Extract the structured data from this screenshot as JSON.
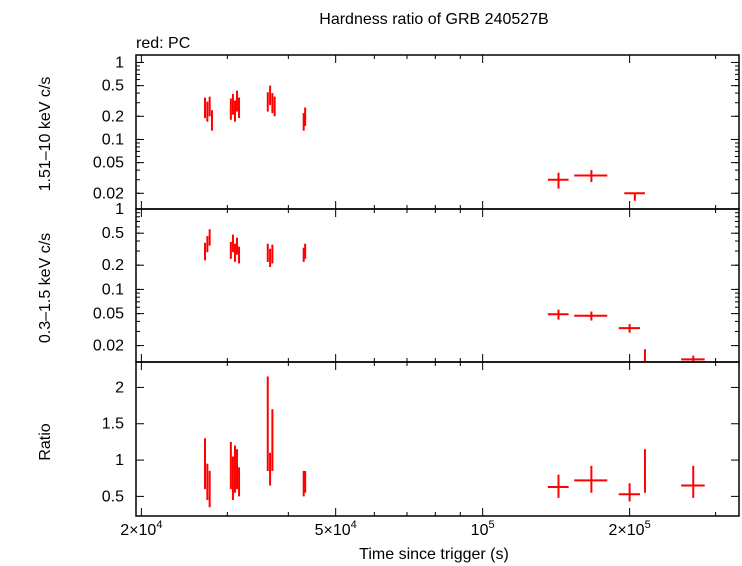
{
  "title": "Hardness ratio of GRB 240527B",
  "legend_note": "red: PC",
  "series_color": "#ff0000",
  "chart_data": [
    {
      "type": "scatter",
      "panel": "hard",
      "ylabel": "1.51–10 keV c/s",
      "yscale": "log",
      "ylim": [
        0.0125,
        1.25
      ],
      "y_ticks": [
        {
          "value": 1,
          "label": "1"
        },
        {
          "value": 0.5,
          "label": "0.5"
        },
        {
          "value": 0.2,
          "label": "0.2"
        },
        {
          "value": 0.1,
          "label": "0.1"
        },
        {
          "value": 0.05,
          "label": "0.05"
        },
        {
          "value": 0.02,
          "label": "0.02"
        }
      ],
      "points": [
        {
          "x": 27000,
          "xerr": 100,
          "y": 0.26,
          "yerr": [
            0.07,
            0.09
          ]
        },
        {
          "x": 27300,
          "xerr": 100,
          "y": 0.23,
          "yerr": [
            0.06,
            0.08
          ]
        },
        {
          "x": 27600,
          "xerr": 100,
          "y": 0.27,
          "yerr": [
            0.07,
            0.09
          ]
        },
        {
          "x": 27900,
          "xerr": 100,
          "y": 0.18,
          "yerr": [
            0.05,
            0.06
          ]
        },
        {
          "x": 30500,
          "xerr": 100,
          "y": 0.25,
          "yerr": [
            0.07,
            0.09
          ]
        },
        {
          "x": 30800,
          "xerr": 100,
          "y": 0.29,
          "yerr": [
            0.08,
            0.1
          ]
        },
        {
          "x": 31100,
          "xerr": 100,
          "y": 0.24,
          "yerr": [
            0.07,
            0.08
          ]
        },
        {
          "x": 31400,
          "xerr": 100,
          "y": 0.32,
          "yerr": [
            0.09,
            0.11
          ]
        },
        {
          "x": 31700,
          "xerr": 100,
          "y": 0.26,
          "yerr": [
            0.07,
            0.09
          ]
        },
        {
          "x": 36300,
          "xerr": 100,
          "y": 0.31,
          "yerr": [
            0.08,
            0.1
          ]
        },
        {
          "x": 36700,
          "xerr": 100,
          "y": 0.38,
          "yerr": [
            0.1,
            0.12
          ]
        },
        {
          "x": 37100,
          "xerr": 100,
          "y": 0.3,
          "yerr": [
            0.08,
            0.1
          ]
        },
        {
          "x": 37500,
          "xerr": 100,
          "y": 0.27,
          "yerr": [
            0.07,
            0.09
          ]
        },
        {
          "x": 43000,
          "xerr": 100,
          "y": 0.17,
          "yerr": [
            0.04,
            0.05
          ]
        },
        {
          "x": 43300,
          "xerr": 100,
          "y": 0.2,
          "yerr": [
            0.05,
            0.06
          ]
        },
        {
          "x": 143000,
          "xerr": 7000,
          "y": 0.03,
          "yerr": [
            0.007,
            0.007
          ]
        },
        {
          "x": 167000,
          "xerr": 13000,
          "y": 0.034,
          "yerr": [
            0.006,
            0.006
          ]
        },
        {
          "x": 205000,
          "xerr": 10000,
          "y": 0.02,
          "yerr": [
            0.004,
            0.0
          ]
        }
      ]
    },
    {
      "type": "scatter",
      "panel": "soft",
      "ylabel": "0.3–1.5 keV c/s",
      "yscale": "log",
      "ylim": [
        0.0125,
        1.0
      ],
      "y_ticks": [
        {
          "value": 1,
          "label": "1"
        },
        {
          "value": 0.5,
          "label": "0.5"
        },
        {
          "value": 0.2,
          "label": "0.2"
        },
        {
          "value": 0.1,
          "label": "0.1"
        },
        {
          "value": 0.05,
          "label": "0.05"
        },
        {
          "value": 0.02,
          "label": "0.02"
        }
      ],
      "points": [
        {
          "x": 27000,
          "xerr": 100,
          "y": 0.3,
          "yerr": [
            0.07,
            0.08
          ]
        },
        {
          "x": 27300,
          "xerr": 100,
          "y": 0.37,
          "yerr": [
            0.08,
            0.09
          ]
        },
        {
          "x": 27600,
          "xerr": 100,
          "y": 0.45,
          "yerr": [
            0.1,
            0.11
          ]
        },
        {
          "x": 30500,
          "xerr": 100,
          "y": 0.31,
          "yerr": [
            0.07,
            0.08
          ]
        },
        {
          "x": 30800,
          "xerr": 100,
          "y": 0.38,
          "yerr": [
            0.09,
            0.1
          ]
        },
        {
          "x": 31100,
          "xerr": 100,
          "y": 0.29,
          "yerr": [
            0.07,
            0.08
          ]
        },
        {
          "x": 31400,
          "xerr": 100,
          "y": 0.35,
          "yerr": [
            0.08,
            0.09
          ]
        },
        {
          "x": 31700,
          "xerr": 100,
          "y": 0.27,
          "yerr": [
            0.06,
            0.07
          ]
        },
        {
          "x": 36300,
          "xerr": 100,
          "y": 0.29,
          "yerr": [
            0.07,
            0.08
          ]
        },
        {
          "x": 36700,
          "xerr": 100,
          "y": 0.25,
          "yerr": [
            0.06,
            0.07
          ]
        },
        {
          "x": 37100,
          "xerr": 100,
          "y": 0.28,
          "yerr": [
            0.07,
            0.08
          ]
        },
        {
          "x": 43000,
          "xerr": 100,
          "y": 0.27,
          "yerr": [
            0.05,
            0.06
          ]
        },
        {
          "x": 43300,
          "xerr": 100,
          "y": 0.3,
          "yerr": [
            0.06,
            0.07
          ]
        },
        {
          "x": 143000,
          "xerr": 7000,
          "y": 0.049,
          "yerr": [
            0.007,
            0.007
          ]
        },
        {
          "x": 167000,
          "xerr": 13000,
          "y": 0.047,
          "yerr": [
            0.006,
            0.006
          ]
        },
        {
          "x": 200000,
          "xerr": 10000,
          "y": 0.033,
          "yerr": [
            0.004,
            0.004
          ]
        },
        {
          "x": 215000,
          "xerr": 1000,
          "y": 0.015,
          "yerr": [
            0.0025,
            0.003
          ]
        },
        {
          "x": 270000,
          "xerr": 15000,
          "y": 0.0135,
          "yerr": [
            0.001,
            0.0015
          ]
        }
      ]
    },
    {
      "type": "scatter",
      "panel": "ratio",
      "ylabel": "Ratio",
      "yscale": "linear",
      "ylim": [
        0.23,
        2.35
      ],
      "y_ticks": [
        {
          "value": 2,
          "label": "2"
        },
        {
          "value": 1.5,
          "label": "1.5"
        },
        {
          "value": 1,
          "label": "1"
        },
        {
          "value": 0.5,
          "label": "0.5"
        }
      ],
      "points": [
        {
          "x": 27000,
          "xerr": 100,
          "y": 0.85,
          "yerr": [
            0.25,
            0.45
          ]
        },
        {
          "x": 27300,
          "xerr": 100,
          "y": 0.65,
          "yerr": [
            0.2,
            0.3
          ]
        },
        {
          "x": 27600,
          "xerr": 100,
          "y": 0.55,
          "yerr": [
            0.2,
            0.3
          ]
        },
        {
          "x": 30500,
          "xerr": 100,
          "y": 0.95,
          "yerr": [
            0.35,
            0.3
          ]
        },
        {
          "x": 30800,
          "xerr": 100,
          "y": 0.75,
          "yerr": [
            0.3,
            0.3
          ]
        },
        {
          "x": 31100,
          "xerr": 100,
          "y": 0.85,
          "yerr": [
            0.3,
            0.35
          ]
        },
        {
          "x": 31400,
          "xerr": 100,
          "y": 0.9,
          "yerr": [
            0.3,
            0.25
          ]
        },
        {
          "x": 31700,
          "xerr": 100,
          "y": 0.7,
          "yerr": [
            0.2,
            0.2
          ]
        },
        {
          "x": 36300,
          "xerr": 100,
          "y": 1.3,
          "yerr": [
            0.45,
            0.85
          ]
        },
        {
          "x": 36700,
          "xerr": 100,
          "y": 0.85,
          "yerr": [
            0.2,
            0.25
          ]
        },
        {
          "x": 37100,
          "xerr": 100,
          "y": 1.2,
          "yerr": [
            0.35,
            0.5
          ]
        },
        {
          "x": 43000,
          "xerr": 100,
          "y": 0.65,
          "yerr": [
            0.15,
            0.2
          ]
        },
        {
          "x": 43300,
          "xerr": 100,
          "y": 0.7,
          "yerr": [
            0.15,
            0.15
          ]
        },
        {
          "x": 143000,
          "xerr": 7000,
          "y": 0.63,
          "yerr": [
            0.15,
            0.17
          ]
        },
        {
          "x": 167000,
          "xerr": 13000,
          "y": 0.72,
          "yerr": [
            0.17,
            0.2
          ]
        },
        {
          "x": 200000,
          "xerr": 10000,
          "y": 0.53,
          "yerr": [
            0.1,
            0.15
          ]
        },
        {
          "x": 215000,
          "xerr": 1000,
          "y": 0.8,
          "yerr": [
            0.25,
            0.35
          ]
        },
        {
          "x": 270000,
          "xerr": 15000,
          "y": 0.65,
          "yerr": [
            0.17,
            0.27
          ]
        }
      ]
    }
  ],
  "x_axis": {
    "label": "Time since trigger (s)",
    "scale": "log",
    "xlim": [
      19500,
      335000
    ],
    "ticks": [
      {
        "value": 20000,
        "mant": "2×10",
        "exp": "4"
      },
      {
        "value": 50000,
        "mant": "5×10",
        "exp": "4"
      },
      {
        "value": 100000,
        "mant": "10",
        "exp": "5"
      },
      {
        "value": 200000,
        "mant": "2×10",
        "exp": "5"
      }
    ],
    "minor": [
      30000,
      40000,
      60000,
      70000,
      80000,
      90000,
      300000
    ]
  }
}
